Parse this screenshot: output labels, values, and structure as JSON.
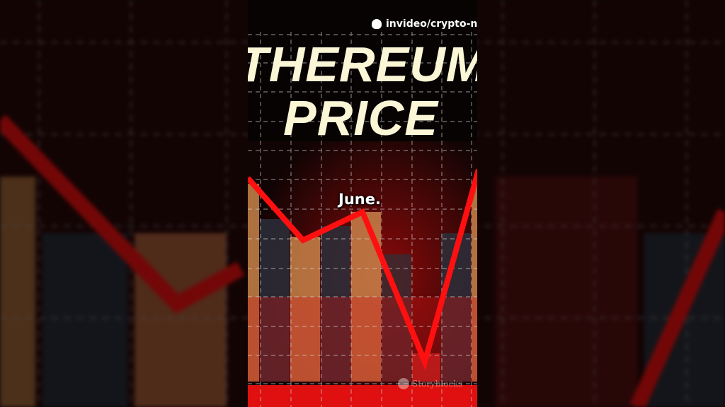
{
  "video": {
    "watermark": "invideo/crypto-ne",
    "title_line1": "THEREUM",
    "title_line2": "PRICE",
    "caption": "June.",
    "stock_watermark": "Storyblocks",
    "colors": {
      "title": "#fbf7d6",
      "line": "#ff1010",
      "bar_orange": "#c9834a",
      "bar_dark": "#2b2f3a"
    }
  }
}
